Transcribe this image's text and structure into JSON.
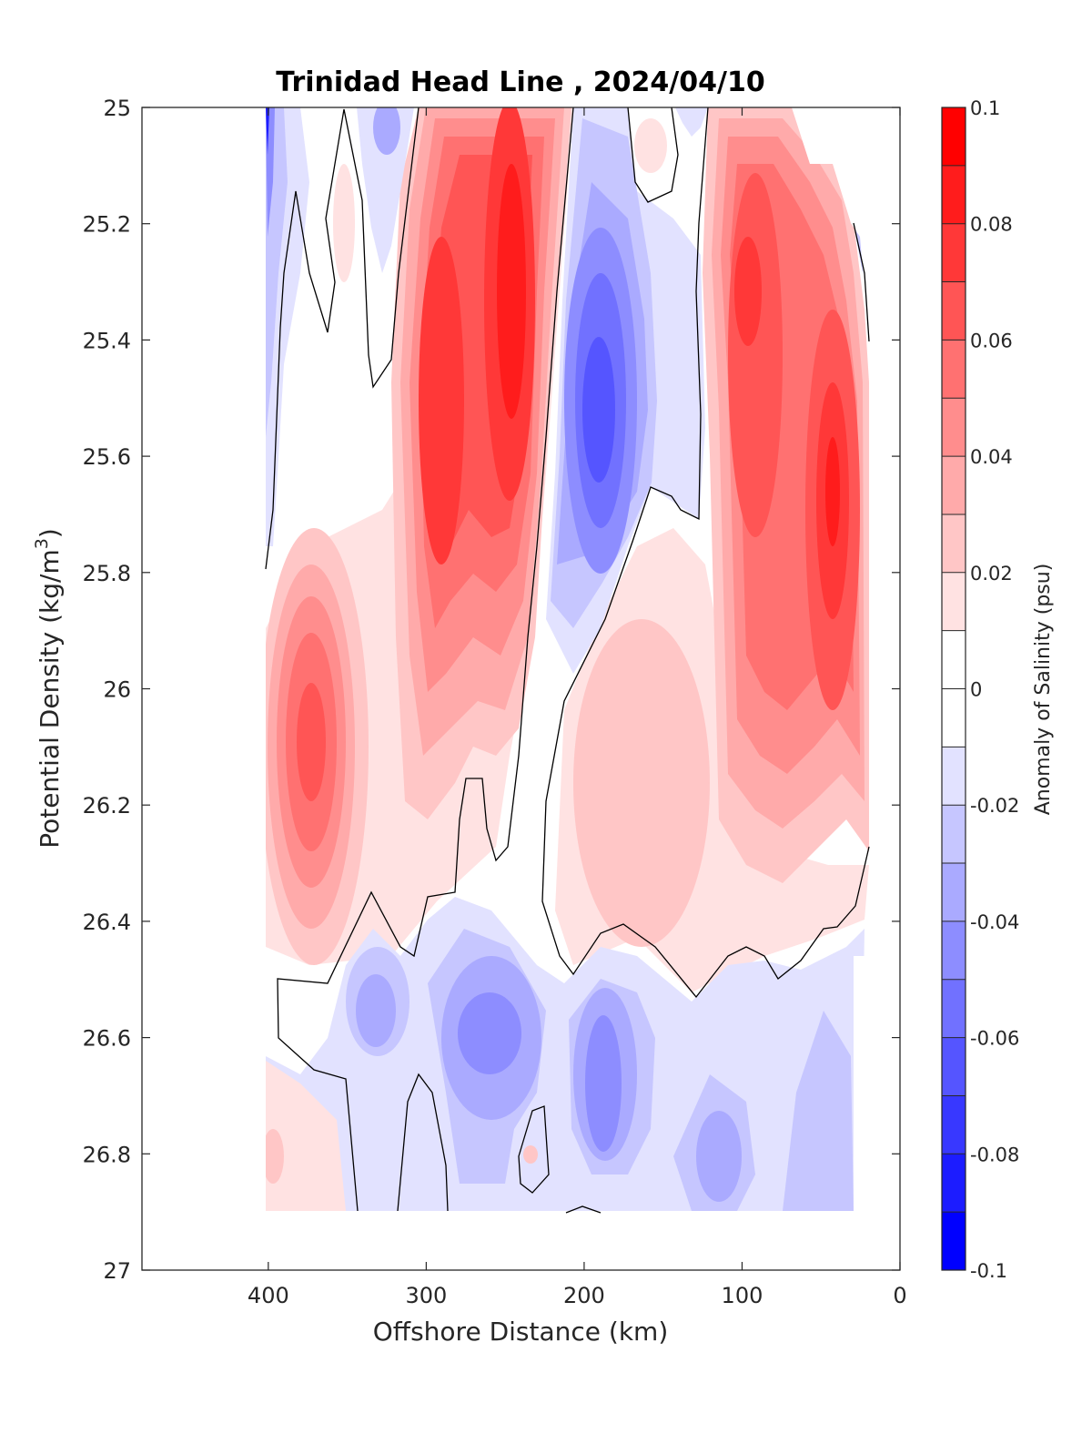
{
  "chart_data": {
    "type": "heatmap",
    "subtype": "filled-contour",
    "title": "Trinidad Head Line , 2024/04/10",
    "xlabel": "Offshore Distance (km)",
    "ylabel": "Potential Density (kg/m",
    "ylabel_sup": "3",
    "ylabel_end": ")",
    "xlim": [
      480,
      0
    ],
    "x_reversed": true,
    "ylim": [
      25,
      27
    ],
    "y_reversed": true,
    "x_ticks": [
      400,
      300,
      200,
      100,
      0
    ],
    "x_tick_labels": [
      "400",
      "300",
      "200",
      "100",
      "0"
    ],
    "y_ticks": [
      25,
      25.2,
      25.4,
      25.6,
      25.8,
      26,
      26.2,
      26.4,
      26.6,
      26.8,
      27
    ],
    "y_tick_labels": [
      "25",
      "25.2",
      "25.4",
      "25.6",
      "25.8",
      "26",
      "26.2",
      "26.4",
      "26.6",
      "26.8",
      "27"
    ],
    "colorbar": {
      "label": "Anomaly of Salinity (psu)",
      "limits": [
        -0.1,
        0.1
      ],
      "ticks": [
        0.1,
        0.08,
        0.06,
        0.04,
        0.02,
        0,
        -0.02,
        -0.04,
        -0.06,
        -0.08,
        -0.1
      ],
      "tick_labels": [
        "0.1",
        "0.08",
        "0.06",
        "0.04",
        "0.02",
        "0",
        "-0.02",
        "-0.04",
        "-0.06",
        "-0.08",
        "-0.1"
      ],
      "levels_top_to_bottom": [
        "#ff0000",
        "#ff1c1c",
        "#ff3838",
        "#ff5555",
        "#ff7171",
        "#ff8d8d",
        "#ffaaaa",
        "#ffc6c6",
        "#ffe2e2",
        "#ffffff",
        "#e2e2ff",
        "#c6c6ff",
        "#aaaaff",
        "#8d8dff",
        "#7171ff",
        "#5555ff",
        "#3838ff",
        "#1c1cff",
        "#0000ff"
      ]
    },
    "features": [
      {
        "name": "positive-core-near-250km",
        "center": [
          250,
          25.4
        ],
        "peak": 0.09
      },
      {
        "name": "positive-core-near-295km",
        "center": [
          295,
          25.55
        ],
        "peak": 0.075
      },
      {
        "name": "negative-core-near-190km",
        "center": [
          190,
          25.5
        ],
        "peak": -0.055
      },
      {
        "name": "positive-core-near-95km",
        "center": [
          95,
          25.3
        ],
        "peak": 0.075
      },
      {
        "name": "positive-core-near-45km",
        "center": [
          45,
          25.6
        ],
        "peak": 0.085
      },
      {
        "name": "positive-core-near-380km",
        "center": [
          380,
          26.1
        ],
        "peak": 0.055
      },
      {
        "name": "positive-patch-near-160km",
        "center": [
          160,
          26.2
        ],
        "peak": 0.025
      },
      {
        "name": "negative-patch-near-265km",
        "center": [
          265,
          26.6
        ],
        "peak": -0.04
      },
      {
        "name": "negative-patch-near-195km",
        "center": [
          195,
          26.7
        ],
        "peak": -0.04
      },
      {
        "name": "negative-patch-near-335km",
        "center": [
          335,
          26.55
        ],
        "peak": -0.025
      },
      {
        "name": "negative-patch-near-120km",
        "center": [
          120,
          26.8
        ],
        "peak": -0.035
      },
      {
        "name": "negative-edge-near-410km",
        "center": [
          410,
          25.1
        ],
        "peak": -0.07
      }
    ]
  }
}
